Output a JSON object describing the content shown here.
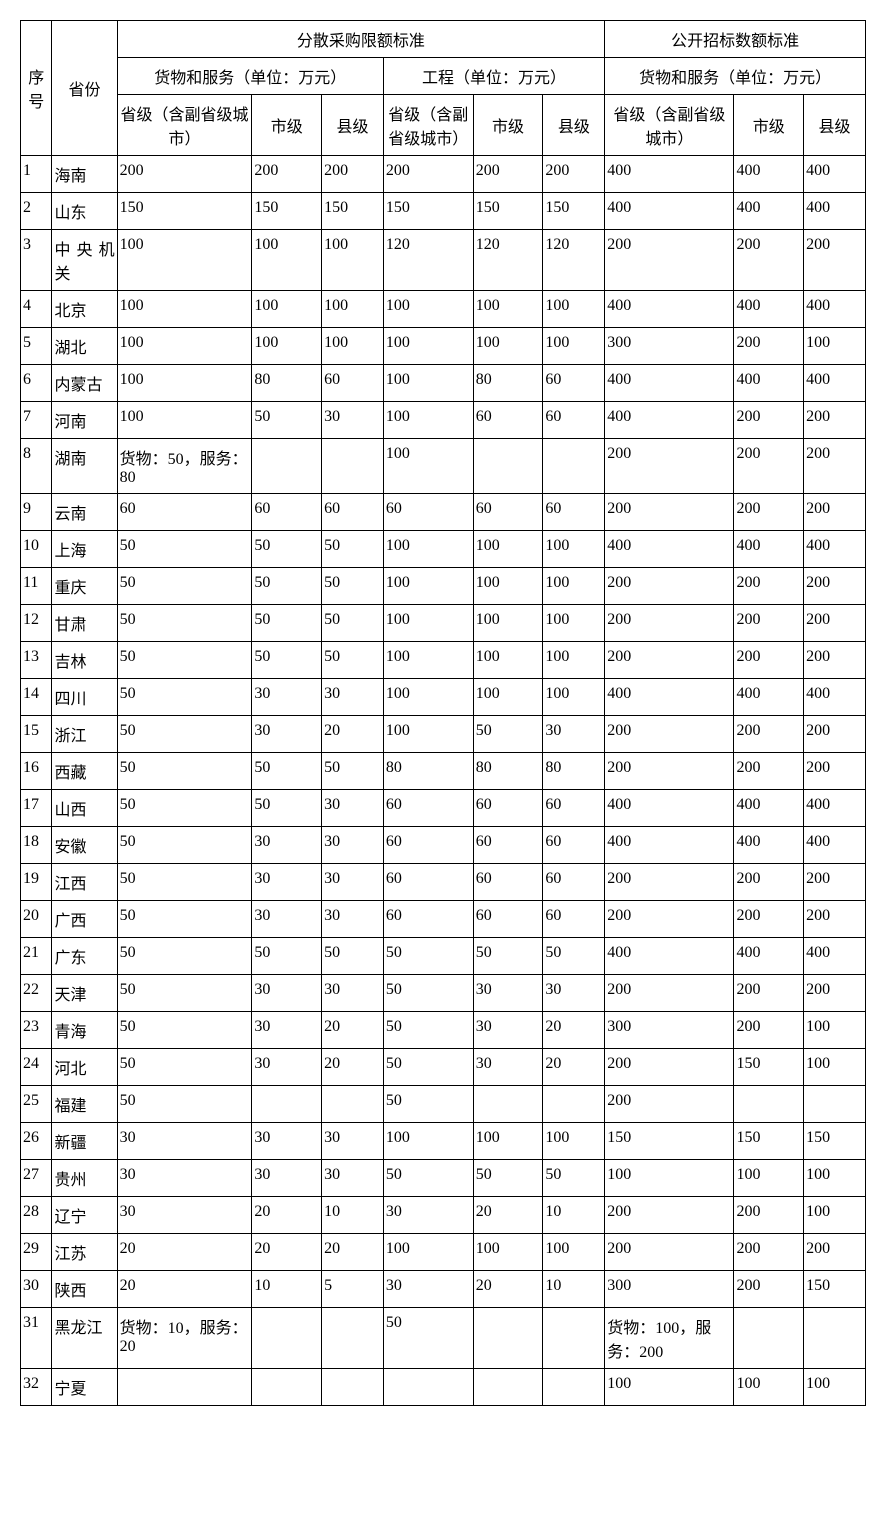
{
  "headers": {
    "seq": "序号",
    "province": "省份",
    "group1": "分散采购限额标准",
    "group2": "公开招标数额标准",
    "sub1": "货物和服务（单位：万元）",
    "sub2": "工程（单位：万元）",
    "sub3": "货物和服务（单位：万元）",
    "provincial": "省级（含副省级城市）",
    "city": "市级",
    "county": "县级"
  },
  "rows": [
    {
      "n": "1",
      "p": "海南",
      "a": "200",
      "b": "200",
      "c": "200",
      "d": "200",
      "e": "200",
      "f": "200",
      "g": "400",
      "h": "400",
      "i": "400"
    },
    {
      "n": "2",
      "p": "山东",
      "a": "150",
      "b": "150",
      "c": "150",
      "d": "150",
      "e": "150",
      "f": "150",
      "g": "400",
      "h": "400",
      "i": "400"
    },
    {
      "n": "3",
      "p": "中央机关",
      "a": "100",
      "b": "100",
      "c": "100",
      "d": "120",
      "e": "120",
      "f": "120",
      "g": "200",
      "h": "200",
      "i": "200"
    },
    {
      "n": "4",
      "p": "北京",
      "a": "100",
      "b": "100",
      "c": "100",
      "d": "100",
      "e": "100",
      "f": "100",
      "g": "400",
      "h": "400",
      "i": "400"
    },
    {
      "n": "5",
      "p": "湖北",
      "a": "100",
      "b": "100",
      "c": "100",
      "d": "100",
      "e": "100",
      "f": "100",
      "g": "300",
      "h": "200",
      "i": "100"
    },
    {
      "n": "6",
      "p": "内蒙古",
      "a": "100",
      "b": "80",
      "c": "60",
      "d": "100",
      "e": "80",
      "f": "60",
      "g": "400",
      "h": "400",
      "i": "400"
    },
    {
      "n": "7",
      "p": "河南",
      "a": "100",
      "b": "50",
      "c": "30",
      "d": "100",
      "e": "60",
      "f": "60",
      "g": "400",
      "h": "200",
      "i": "200"
    },
    {
      "n": "8",
      "p": "湖南",
      "a": "货物：50，服务：80",
      "b": "",
      "c": "",
      "d": "100",
      "e": "",
      "f": "",
      "g": "200",
      "h": "200",
      "i": "200"
    },
    {
      "n": "9",
      "p": "云南",
      "a": "60",
      "b": "60",
      "c": "60",
      "d": "60",
      "e": "60",
      "f": "60",
      "g": "200",
      "h": "200",
      "i": "200"
    },
    {
      "n": "10",
      "p": "上海",
      "a": "50",
      "b": "50",
      "c": "50",
      "d": "100",
      "e": "100",
      "f": "100",
      "g": "400",
      "h": "400",
      "i": "400"
    },
    {
      "n": "11",
      "p": "重庆",
      "a": "50",
      "b": "50",
      "c": "50",
      "d": "100",
      "e": "100",
      "f": "100",
      "g": "200",
      "h": "200",
      "i": "200"
    },
    {
      "n": "12",
      "p": "甘肃",
      "a": "50",
      "b": "50",
      "c": "50",
      "d": "100",
      "e": "100",
      "f": "100",
      "g": "200",
      "h": "200",
      "i": "200"
    },
    {
      "n": "13",
      "p": "吉林",
      "a": "50",
      "b": "50",
      "c": "50",
      "d": "100",
      "e": "100",
      "f": "100",
      "g": "200",
      "h": "200",
      "i": "200"
    },
    {
      "n": "14",
      "p": "四川",
      "a": "50",
      "b": "30",
      "c": "30",
      "d": "100",
      "e": "100",
      "f": "100",
      "g": "400",
      "h": "400",
      "i": "400"
    },
    {
      "n": "15",
      "p": "浙江",
      "a": "50",
      "b": "30",
      "c": "20",
      "d": "100",
      "e": "50",
      "f": "30",
      "g": "200",
      "h": "200",
      "i": "200"
    },
    {
      "n": "16",
      "p": "西藏",
      "a": "50",
      "b": "50",
      "c": "50",
      "d": "80",
      "e": "80",
      "f": "80",
      "g": "200",
      "h": "200",
      "i": "200"
    },
    {
      "n": "17",
      "p": "山西",
      "a": "50",
      "b": "50",
      "c": "30",
      "d": "60",
      "e": "60",
      "f": "60",
      "g": "400",
      "h": "400",
      "i": "400"
    },
    {
      "n": "18",
      "p": "安徽",
      "a": "50",
      "b": "30",
      "c": "30",
      "d": "60",
      "e": "60",
      "f": "60",
      "g": "400",
      "h": "400",
      "i": "400"
    },
    {
      "n": "19",
      "p": "江西",
      "a": "50",
      "b": "30",
      "c": "30",
      "d": "60",
      "e": "60",
      "f": "60",
      "g": "200",
      "h": "200",
      "i": "200"
    },
    {
      "n": "20",
      "p": "广西",
      "a": "50",
      "b": "30",
      "c": "30",
      "d": "60",
      "e": "60",
      "f": "60",
      "g": "200",
      "h": "200",
      "i": "200"
    },
    {
      "n": "21",
      "p": "广东",
      "a": "50",
      "b": "50",
      "c": "50",
      "d": "50",
      "e": "50",
      "f": "50",
      "g": "400",
      "h": "400",
      "i": "400"
    },
    {
      "n": "22",
      "p": "天津",
      "a": "50",
      "b": "30",
      "c": "30",
      "d": "50",
      "e": "30",
      "f": "30",
      "g": "200",
      "h": "200",
      "i": "200"
    },
    {
      "n": "23",
      "p": "青海",
      "a": "50",
      "b": "30",
      "c": "20",
      "d": "50",
      "e": "30",
      "f": "20",
      "g": "300",
      "h": "200",
      "i": "100"
    },
    {
      "n": "24",
      "p": "河北",
      "a": "50",
      "b": "30",
      "c": "20",
      "d": "50",
      "e": "30",
      "f": "20",
      "g": "200",
      "h": "150",
      "i": "100"
    },
    {
      "n": "25",
      "p": "福建",
      "a": "50",
      "b": "",
      "c": "",
      "d": "50",
      "e": "",
      "f": "",
      "g": "200",
      "h": "",
      "i": ""
    },
    {
      "n": "26",
      "p": "新疆",
      "a": "30",
      "b": "30",
      "c": "30",
      "d": "100",
      "e": "100",
      "f": "100",
      "g": "150",
      "h": "150",
      "i": "150"
    },
    {
      "n": "27",
      "p": "贵州",
      "a": "30",
      "b": "30",
      "c": "30",
      "d": "50",
      "e": "50",
      "f": "50",
      "g": "100",
      "h": "100",
      "i": "100"
    },
    {
      "n": "28",
      "p": "辽宁",
      "a": "30",
      "b": "20",
      "c": "10",
      "d": "30",
      "e": "20",
      "f": "10",
      "g": "200",
      "h": "200",
      "i": "100"
    },
    {
      "n": "29",
      "p": "江苏",
      "a": "20",
      "b": "20",
      "c": "20",
      "d": "100",
      "e": "100",
      "f": "100",
      "g": "200",
      "h": "200",
      "i": "200"
    },
    {
      "n": "30",
      "p": "陕西",
      "a": "20",
      "b": "10",
      "c": "5",
      "d": "30",
      "e": "20",
      "f": "10",
      "g": "300",
      "h": "200",
      "i": "150"
    },
    {
      "n": "31",
      "p": "黑龙江",
      "a": "货物：10，服务：20",
      "b": "",
      "c": "",
      "d": "50",
      "e": "",
      "f": "",
      "g": "货物：100，服务：200",
      "h": "",
      "i": ""
    },
    {
      "n": "32",
      "p": "宁夏",
      "a": "",
      "b": "",
      "c": "",
      "d": "",
      "e": "",
      "f": "",
      "g": "100",
      "h": "100",
      "i": "100"
    }
  ]
}
